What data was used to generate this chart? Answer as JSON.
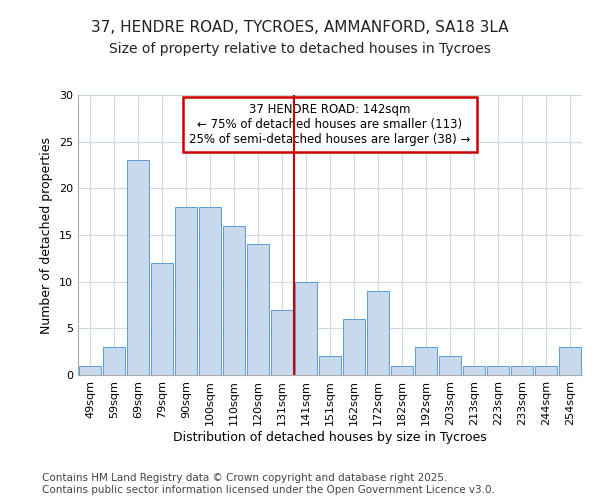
{
  "title1": "37, HENDRE ROAD, TYCROES, AMMANFORD, SA18 3LA",
  "title2": "Size of property relative to detached houses in Tycroes",
  "xlabel": "Distribution of detached houses by size in Tycroes",
  "ylabel": "Number of detached properties",
  "categories": [
    "49sqm",
    "59sqm",
    "69sqm",
    "79sqm",
    "90sqm",
    "100sqm",
    "110sqm",
    "120sqm",
    "131sqm",
    "141sqm",
    "151sqm",
    "162sqm",
    "172sqm",
    "182sqm",
    "192sqm",
    "203sqm",
    "213sqm",
    "223sqm",
    "233sqm",
    "244sqm",
    "254sqm"
  ],
  "values": [
    1,
    3,
    23,
    12,
    18,
    18,
    16,
    14,
    7,
    10,
    2,
    6,
    9,
    1,
    3,
    2,
    1,
    1,
    1,
    1,
    3
  ],
  "bar_color": "#c8d9ee",
  "bar_edge_color": "#5b9bd5",
  "highlight_index": 9,
  "highlight_line_color": "#cc0000",
  "annotation_box_text": "37 HENDRE ROAD: 142sqm\n← 75% of detached houses are smaller (113)\n25% of semi-detached houses are larger (38) →",
  "annotation_box_color": "#ffffff",
  "annotation_box_edge_color": "#cc0000",
  "ylim": [
    0,
    30
  ],
  "yticks": [
    0,
    5,
    10,
    15,
    20,
    25,
    30
  ],
  "footer_text": "Contains HM Land Registry data © Crown copyright and database right 2025.\nContains public sector information licensed under the Open Government Licence v3.0.",
  "background_color": "#ffffff",
  "plot_background_color": "#ffffff",
  "grid_color": "#d0d8e8",
  "title_fontsize": 11,
  "subtitle_fontsize": 10,
  "axis_label_fontsize": 9,
  "tick_fontsize": 8,
  "footer_fontsize": 7.5,
  "ann_fontsize": 8.5
}
